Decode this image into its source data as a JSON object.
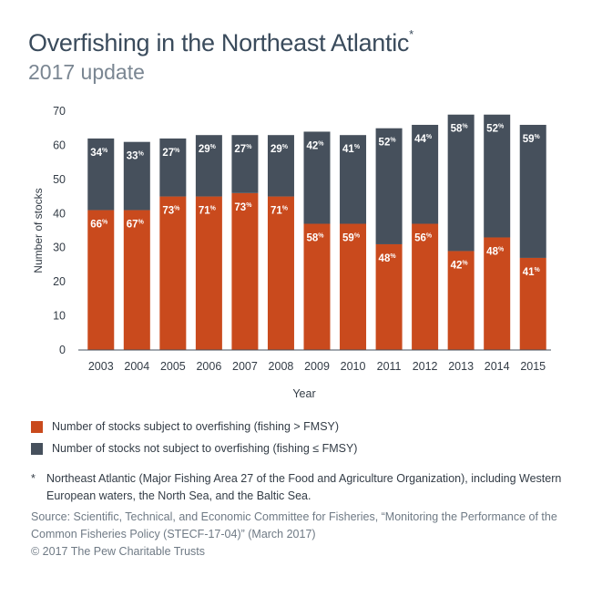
{
  "header": {
    "title": "Overfishing in the Northeast Atlantic",
    "title_marker": "*",
    "subtitle": "2017 update"
  },
  "legend": {
    "items": [
      {
        "label": "Number of stocks subject to overfishing (fishing > FMSY)",
        "color": "#c94a1d"
      },
      {
        "label": "Number of stocks not subject to overfishing (fishing ≤ FMSY)",
        "color": "#46505c"
      }
    ]
  },
  "footnote": {
    "marker": "*",
    "text": "Northeast Atlantic (Major Fishing Area 27 of the Food and Agriculture Organization), including Western European waters, the North Sea, and the Baltic Sea."
  },
  "source": "Source: Scientific, Technical, and Economic Committee for Fisheries, “Monitoring the Performance of the Common Fisheries Policy (STECF-17-04)” (March 2017)",
  "copyright": "© 2017 The Pew Charitable Trusts",
  "chart_data": {
    "type": "bar",
    "stacked": true,
    "xlabel": "Year",
    "ylabel": "Number of stocks",
    "ylim": [
      0,
      70
    ],
    "yticks": [
      0,
      10,
      20,
      30,
      40,
      50,
      60,
      70
    ],
    "grid": false,
    "categories": [
      "2003",
      "2004",
      "2005",
      "2006",
      "2007",
      "2008",
      "2009",
      "2010",
      "2011",
      "2012",
      "2013",
      "2014",
      "2015"
    ],
    "series": [
      {
        "name": "Number of stocks subject to overfishing (fishing > FMSY)",
        "color": "#c94a1d",
        "values": [
          41,
          41,
          45,
          45,
          46,
          45,
          37,
          37,
          31,
          37,
          29,
          33,
          27
        ],
        "labels": [
          "66",
          "67",
          "73",
          "71",
          "73",
          "71",
          "58",
          "59",
          "48",
          "56",
          "42",
          "48",
          "41"
        ]
      },
      {
        "name": "Number of stocks not subject to overfishing (fishing ≤ FMSY)",
        "color": "#46505c",
        "values": [
          21,
          20,
          17,
          18,
          17,
          18,
          27,
          26,
          34,
          29,
          40,
          36,
          39
        ],
        "labels": [
          "34",
          "33",
          "27",
          "29",
          "27",
          "29",
          "42",
          "41",
          "52",
          "44",
          "58",
          "52",
          "59"
        ]
      }
    ],
    "label_suffix": "%"
  }
}
